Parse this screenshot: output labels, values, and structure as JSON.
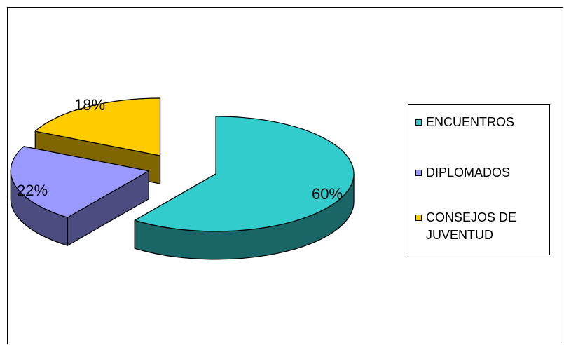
{
  "chart_data": {
    "type": "pie",
    "style": "3d-exploded",
    "categories": [
      "ENCUENTROS",
      "DIPLOMADOS",
      "CONSEJOS DE JUVENTUD"
    ],
    "values": [
      60,
      22,
      18
    ],
    "value_labels": [
      "60%",
      "22%",
      "18%"
    ],
    "colors": {
      "ENCUENTROS": {
        "top": "#33cccc",
        "side": "#1a6666"
      },
      "DIPLOMADOS": {
        "top": "#9999ff",
        "side": "#4c4c80"
      },
      "CONSEJOS DE JUVENTUD": {
        "top": "#ffcc00",
        "side": "#806600"
      }
    },
    "legend_placement": "right",
    "title": ""
  },
  "legend": {
    "items": [
      {
        "label": "ENCUENTROS",
        "color": "#33cccc"
      },
      {
        "label": "DIPLOMADOS",
        "color": "#9999ff"
      },
      {
        "label": "CONSEJOS DE JUVENTUD",
        "color": "#ffcc00"
      }
    ]
  }
}
